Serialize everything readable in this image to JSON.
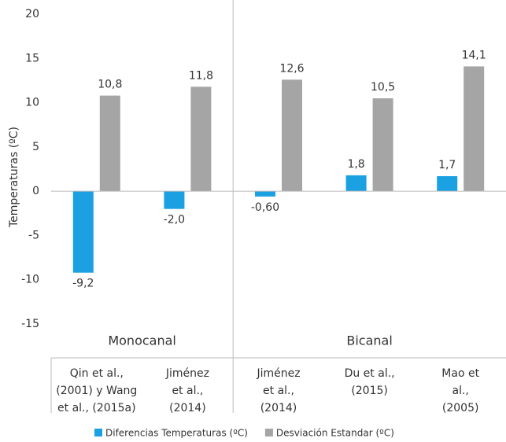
{
  "chart_data": {
    "type": "bar",
    "y_label": "Temperaturas (ºC)",
    "categories": [
      [
        "Qin et al.,",
        "(2001) y Wang",
        "et al., (2015a)"
      ],
      [
        "Jiménez",
        "et al.,",
        "(2014)"
      ],
      [
        "Jiménez",
        "et al.,",
        "(2014)"
      ],
      [
        "Du et al.,",
        "(2015)"
      ],
      [
        "Mao et",
        "al.,",
        "(2005)"
      ]
    ],
    "groups": [
      "Monocanal",
      "Bicanal"
    ],
    "series": [
      {
        "name": "Diferencias Temperaturas (ºC)",
        "color": "#1ba1e2",
        "values": [
          -9.2,
          -2.0,
          -0.6,
          1.8,
          1.7
        ],
        "value_labels": [
          "-9,2",
          "-2,0",
          "-0,60",
          "1,8",
          "1,7"
        ]
      },
      {
        "name": "Desviación Estandar (ºC)",
        "color": "#a5a5a5",
        "values": [
          10.8,
          11.8,
          12.6,
          10.5,
          14.1
        ],
        "value_labels": [
          "10,8",
          "11,8",
          "12,6",
          "10,5",
          "14,1"
        ]
      }
    ],
    "ylim": [
      -15,
      20
    ],
    "yticks": [
      -15,
      -10,
      -5,
      0,
      5,
      10,
      15,
      20
    ]
  }
}
